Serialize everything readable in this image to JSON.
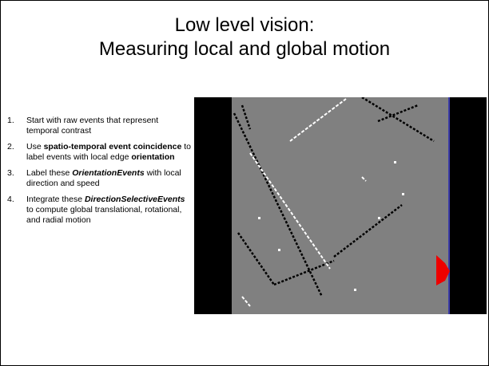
{
  "title_lines": [
    "Low level vision:",
    "Measuring local and global motion"
  ],
  "items": [
    {
      "number": "1.",
      "text": [
        "Start with raw events that represent temporal contrast"
      ]
    },
    {
      "number": "2.",
      "text": [
        "Use ",
        "spatio-temporal event coincidence",
        " to label events with local edge ",
        "orientation"
      ]
    },
    {
      "number": "3.",
      "text": [
        "Label these ",
        "OrientationEvents",
        " with local direction and speed"
      ]
    },
    {
      "number": "4.",
      "text": [
        "Integrate these ",
        "DirectionSelectiveEvents",
        " to compute global translational, rotational, and radial motion"
      ]
    }
  ]
}
